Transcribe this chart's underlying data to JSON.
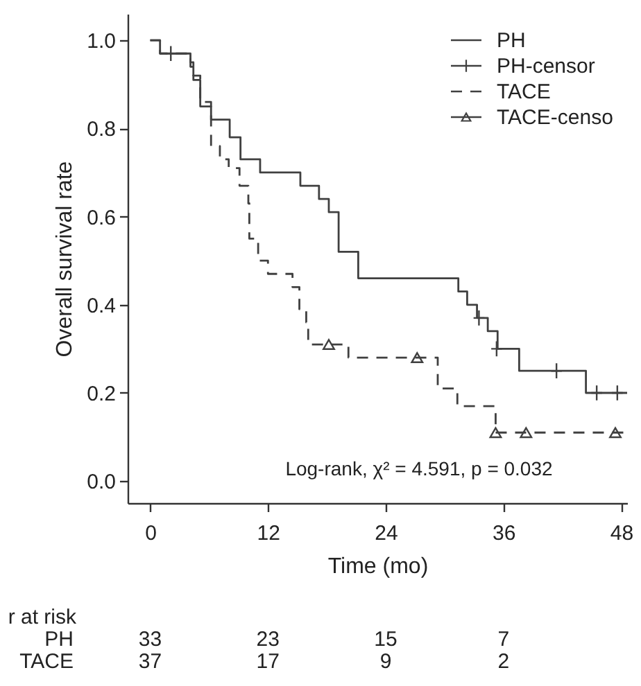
{
  "chart_data": {
    "type": "step",
    "xlabel": "Time (mo)",
    "ylabel": "Overall survival rate",
    "xlim": [
      -2.3,
      48.6
    ],
    "ylim": [
      -0.05,
      1.06
    ],
    "xticks": [
      0,
      12,
      24,
      36,
      48
    ],
    "yticks": [
      {
        "value": 0,
        "label": "0.0"
      },
      {
        "value": 0.2,
        "label": "0.2"
      },
      {
        "value": 0.4,
        "label": "0.4"
      },
      {
        "value": 0.6,
        "label": "0.6"
      },
      {
        "value": 0.8,
        "label": "0.8"
      },
      {
        "value": 1,
        "label": "1.0"
      }
    ],
    "grid": false,
    "legend": "top right",
    "series": [
      {
        "name": "PH",
        "color": "#404040",
        "line_style": "solid",
        "x": [
          0,
          1.0,
          4.1,
          4.4,
          5.1,
          6.2,
          8.1,
          9.2,
          11.2,
          15.3,
          17.2,
          18.2,
          19.2,
          21.2,
          31.4,
          32.3,
          33.3,
          34.4,
          35.4,
          37.6,
          44.4,
          48.6
        ],
        "values": [
          1.0,
          0.97,
          0.94,
          0.91,
          0.85,
          0.82,
          0.78,
          0.73,
          0.7,
          0.67,
          0.64,
          0.61,
          0.52,
          0.46,
          0.43,
          0.4,
          0.37,
          0.34,
          0.3,
          0.25,
          0.2,
          0.2
        ]
      },
      {
        "name": "PH-censor",
        "type": "scatter",
        "color": "#404040",
        "marker": "cross",
        "x": [
          2.1,
          33.5,
          35.3,
          41.4,
          45.5,
          47.6
        ],
        "values": [
          0.97,
          0.37,
          0.3,
          0.25,
          0.2,
          0.2
        ]
      },
      {
        "name": "TACE",
        "color": "#404040",
        "line_style": "dashed",
        "x": [
          0,
          1.0,
          4.1,
          4.4,
          5.1,
          6.2,
          7.1,
          8.0,
          9.1,
          10.0,
          10.1,
          11.0,
          12.0,
          14.5,
          15.2,
          15.9,
          16.1,
          20.2,
          29.3,
          31.3,
          35.2,
          48.6
        ],
        "values": [
          1.0,
          0.97,
          0.95,
          0.92,
          0.86,
          0.76,
          0.73,
          0.71,
          0.67,
          0.63,
          0.55,
          0.5,
          0.47,
          0.44,
          0.39,
          0.36,
          0.31,
          0.28,
          0.21,
          0.17,
          0.11,
          0.11
        ]
      },
      {
        "name": "TACE-censo",
        "type": "scatter",
        "color": "#404040",
        "marker": "triangle",
        "x": [
          18.2,
          27.2,
          35.2,
          38.3,
          47.4
        ],
        "values": [
          0.31,
          0.28,
          0.11,
          0.11,
          0.11
        ]
      }
    ],
    "annotations": [
      "Log-rank, χ² = 4.591, p = 0.032",
      "r at risk",
      "PH",
      "33",
      "23",
      "15",
      "7",
      "TACE",
      "37",
      "17",
      "9",
      "2"
    ]
  }
}
